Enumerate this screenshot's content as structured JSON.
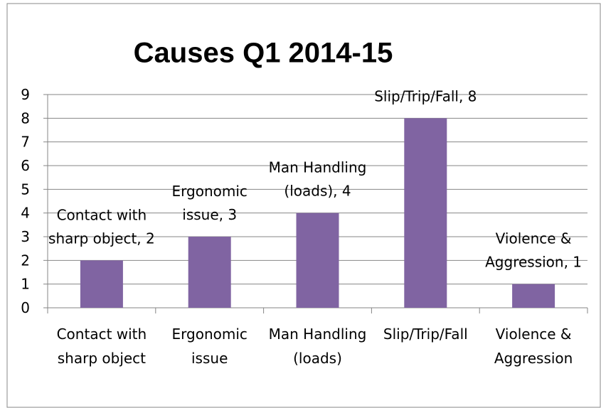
{
  "chart_data": {
    "type": "bar",
    "title": "Causes Q1 2014-15",
    "categories": [
      "Contact with sharp object",
      "Ergonomic issue",
      "Man Handling (loads)",
      "Slip/Trip/Fall",
      "Violence & Aggression"
    ],
    "values": [
      2,
      3,
      4,
      8,
      1
    ],
    "value_labels": [
      "Contact with sharp object, 2",
      "Ergonomic issue, 3",
      "Man Handling (loads), 4",
      "Slip/Trip/Fall, 8",
      "Violence & Aggression, 1"
    ],
    "color": "#8064a2",
    "ylim": [
      0,
      9
    ],
    "yticks": [
      0,
      1,
      2,
      3,
      4,
      5,
      6,
      7,
      8,
      9
    ],
    "grid": true
  }
}
